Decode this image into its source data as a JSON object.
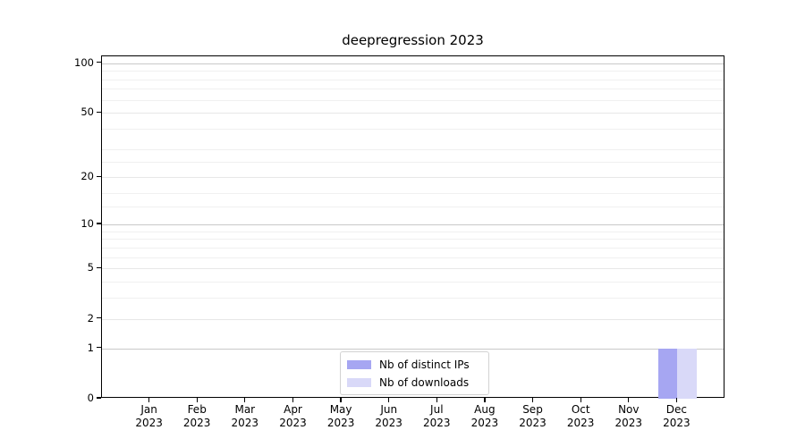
{
  "chart_data": {
    "type": "bar",
    "title": "deepregression 2023",
    "categories": [
      "Jan 2023",
      "Feb 2023",
      "Mar 2023",
      "Apr 2023",
      "May 2023",
      "Jun 2023",
      "Jul 2023",
      "Aug 2023",
      "Sep 2023",
      "Oct 2023",
      "Nov 2023",
      "Dec 2023"
    ],
    "series": [
      {
        "name": "Nb of distinct IPs",
        "color": "#a6a6f2",
        "values": [
          0,
          0,
          0,
          0,
          0,
          0,
          0,
          0,
          0,
          0,
          0,
          1
        ]
      },
      {
        "name": "Nb of downloads",
        "color": "#d9d9f8",
        "values": [
          0,
          0,
          0,
          0,
          0,
          0,
          0,
          0,
          0,
          0,
          0,
          1
        ]
      }
    ],
    "yscale": "log1p",
    "ylim": [
      0,
      110
    ],
    "yticks": [
      0,
      1,
      2,
      5,
      10,
      20,
      50,
      100
    ],
    "yticks_emphasized": [
      1,
      10,
      100
    ],
    "yticks_minor": [
      3,
      4,
      6,
      7,
      8,
      9,
      13,
      16,
      25,
      30,
      40,
      60,
      70,
      80,
      90
    ],
    "grid": true,
    "legend_position": "lower center",
    "axis_color": "#000000",
    "grid_major_color": "#c9c9c9",
    "grid_light_color": "#e7e7e7",
    "grid_minor_color": "#f0f0f0"
  }
}
